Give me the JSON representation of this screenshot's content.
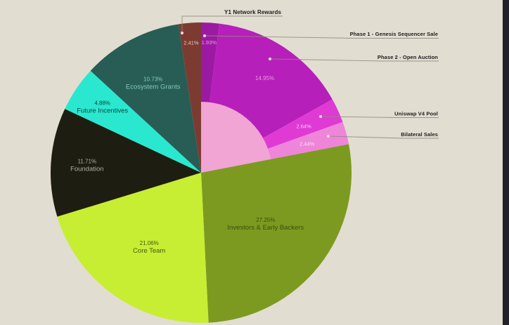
{
  "chart_data": {
    "type": "pie",
    "title": "",
    "start_angle_deg": 0,
    "direction": "clockwise",
    "legend_position": "callouts",
    "slices": [
      {
        "label": "Phase 1 - Genesis Sequencer Sale",
        "value": 1.93,
        "pct": "1.93%",
        "color": "#9c1aa2"
      },
      {
        "label": "Phase 2 - Open Auction",
        "value": 14.95,
        "pct": "14.95%",
        "color": "#b71fba"
      },
      {
        "label": "Uniswap V4 Pool",
        "value": 2.64,
        "pct": "2.64%",
        "color": "#df3bd4"
      },
      {
        "label": "Bilateral Sales",
        "value": 2.44,
        "pct": "2.44%",
        "color": "#ee85d9"
      },
      {
        "label": "Investors & Early Backers",
        "value": 27.25,
        "pct": "27.25%",
        "color": "#7d9a20"
      },
      {
        "label": "Core Team",
        "value": 21.06,
        "pct": "21.06%",
        "color": "#c7ee33"
      },
      {
        "label": "Foundation",
        "value": 11.71,
        "pct": "11.71%",
        "color": "#1e1d11"
      },
      {
        "label": "Future Incentives",
        "value": 4.88,
        "pct": "4.88%",
        "color": "#2ae8d0"
      },
      {
        "label": "Ecosystem Grants",
        "value": 10.73,
        "pct": "10.73%",
        "color": "#275d55"
      },
      {
        "label": "Y1 Network Rewards",
        "value": 2.41,
        "pct": "2.41%",
        "color": "#7c3b31"
      }
    ],
    "inner_highlight": {
      "start_pct": 0,
      "end_pct": 21.96,
      "color": "#f0a5d5",
      "radius_fraction": 0.472
    },
    "colors": {
      "background": "#e2ddd1",
      "leader_line": "#8f8b80",
      "callout_text": "#1c1c1c",
      "window_edge": "#232227"
    }
  }
}
